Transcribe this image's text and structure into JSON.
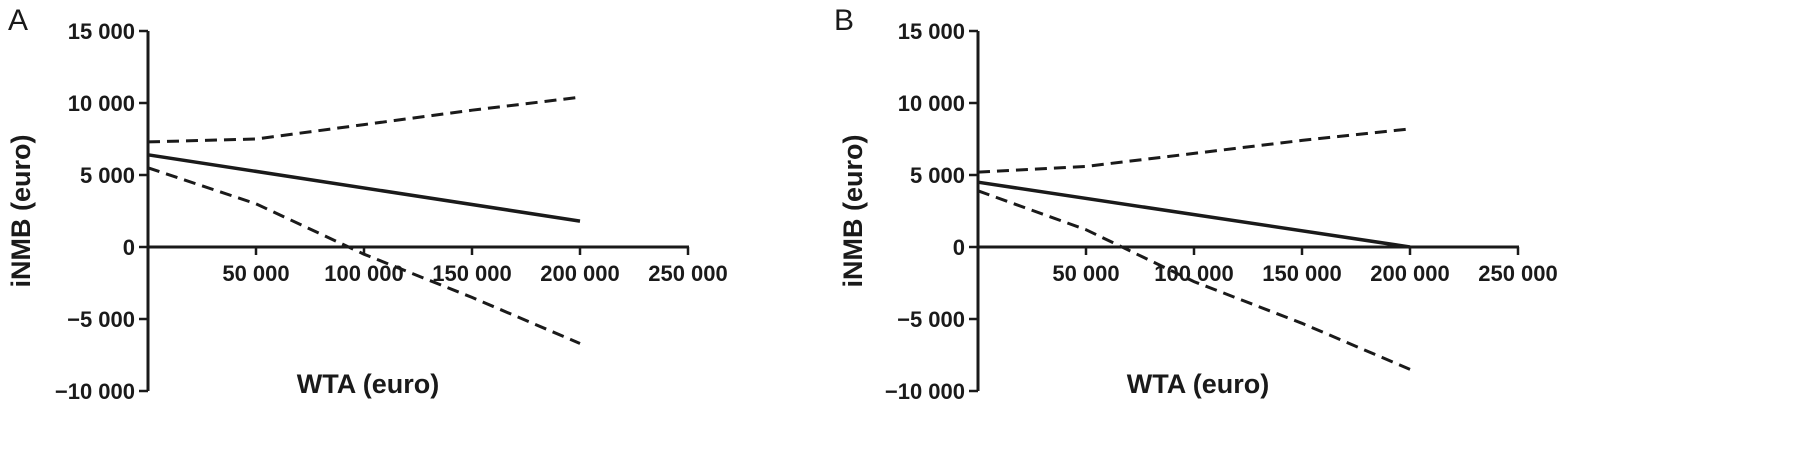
{
  "chart_data": [
    {
      "type": "line",
      "panel_label": "A",
      "xlabel": "WTA (euro)",
      "ylabel": "iNMB (euro)",
      "xlim": [
        0,
        250000
      ],
      "ylim": [
        -10000,
        15000
      ],
      "x_ticks": [
        50000,
        100000,
        150000,
        200000,
        250000
      ],
      "x_tick_labels": [
        "50 000",
        "100 000",
        "150 000",
        "200 000",
        "250 000"
      ],
      "y_ticks": [
        15000,
        10000,
        5000,
        0,
        -5000,
        -10000
      ],
      "y_tick_labels": [
        "15 000",
        "10 000",
        "5 000",
        "0",
        "−5 000",
        "−10 000"
      ],
      "grid": false,
      "series": [
        {
          "style": "solid",
          "points": [
            [
              0,
              6400
            ],
            [
              200000,
              1800
            ]
          ]
        },
        {
          "style": "dashed",
          "points": [
            [
              0,
              7300
            ],
            [
              50000,
              7500
            ],
            [
              100000,
              8500
            ],
            [
              150000,
              9500
            ],
            [
              200000,
              10400
            ]
          ]
        },
        {
          "style": "dashed",
          "points": [
            [
              0,
              5500
            ],
            [
              50000,
              3000
            ],
            [
              100000,
              -500
            ],
            [
              150000,
              -3500
            ],
            [
              200000,
              -6700
            ]
          ]
        }
      ]
    },
    {
      "type": "line",
      "panel_label": "B",
      "xlabel": "WTA (euro)",
      "ylabel": "iNMB (euro)",
      "xlim": [
        0,
        250000
      ],
      "ylim": [
        -10000,
        15000
      ],
      "x_ticks": [
        50000,
        100000,
        150000,
        200000,
        250000
      ],
      "x_tick_labels": [
        "50 000",
        "100 000",
        "150 000",
        "200 000",
        "250 000"
      ],
      "y_ticks": [
        15000,
        10000,
        5000,
        0,
        -5000,
        -10000
      ],
      "y_tick_labels": [
        "15 000",
        "10 000",
        "5 000",
        "0",
        "−5 000",
        "−10 000"
      ],
      "grid": false,
      "series": [
        {
          "style": "solid",
          "points": [
            [
              0,
              4500
            ],
            [
              200000,
              0
            ]
          ]
        },
        {
          "style": "dashed",
          "points": [
            [
              0,
              5200
            ],
            [
              50000,
              5600
            ],
            [
              100000,
              6500
            ],
            [
              150000,
              7400
            ],
            [
              200000,
              8200
            ]
          ]
        },
        {
          "style": "dashed",
          "points": [
            [
              0,
              3900
            ],
            [
              50000,
              1200
            ],
            [
              100000,
              -2400
            ],
            [
              150000,
              -5300
            ],
            [
              200000,
              -8500
            ]
          ]
        }
      ]
    }
  ]
}
